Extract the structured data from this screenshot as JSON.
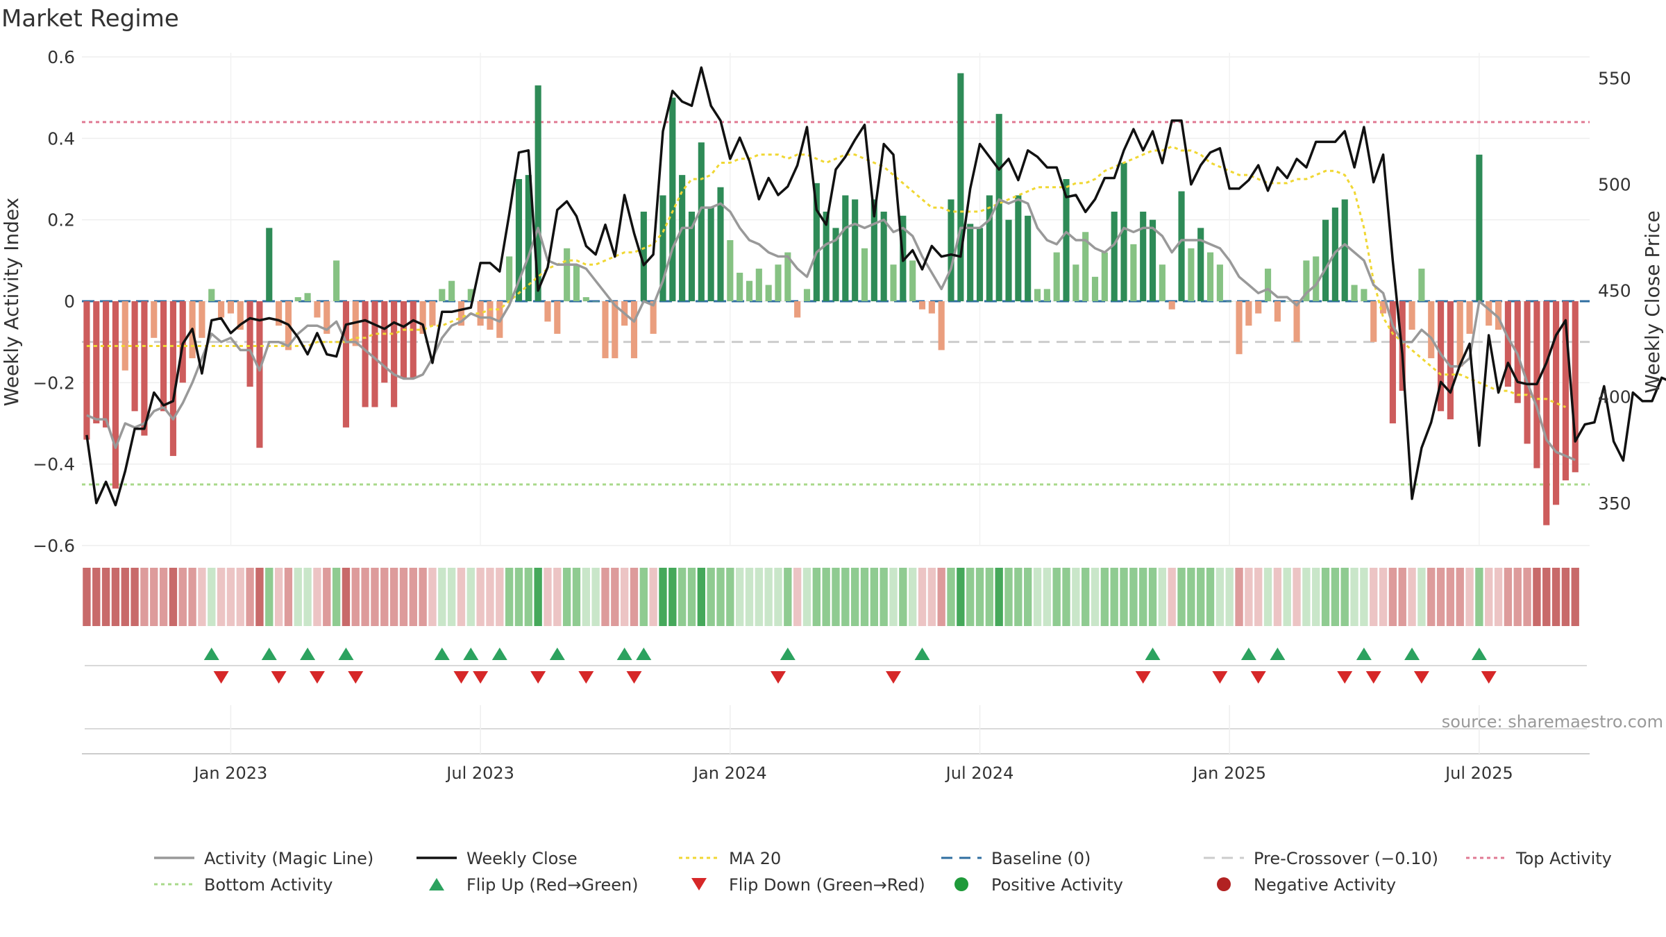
{
  "title": "Market Regime",
  "chart_data": {
    "type": "bar",
    "title": "Market Regime",
    "ylabel_left": "Weekly Activity Index",
    "ylabel_right": "Weekly Close Price",
    "ylim_left": [
      -0.6,
      0.6
    ],
    "ylim_right": [
      330,
      560
    ],
    "yticks_left": [
      -0.6,
      -0.4,
      -0.2,
      0,
      0.2,
      0.4,
      0.6
    ],
    "yticks_left_labels": [
      "−0.6",
      "−0.4",
      "−0.2",
      "0",
      "0.2",
      "0.4",
      "0.6"
    ],
    "yticks_right": [
      350,
      400,
      450,
      500,
      550
    ],
    "yticks_right_labels": [
      "350",
      "400",
      "450",
      "500",
      "550"
    ],
    "xticks": [
      {
        "label": "Jan 2023",
        "week": 15
      },
      {
        "label": "Jul 2023",
        "week": 41
      },
      {
        "label": "Jan 2024",
        "week": 67
      },
      {
        "label": "Jul 2024",
        "week": 93
      },
      {
        "label": "Jan 2025",
        "week": 119
      },
      {
        "label": "Jul 2025",
        "week": 145
      }
    ],
    "week_count": 157,
    "top_activity": 0.44,
    "bottom_activity": -0.45,
    "pre_crossover": -0.1,
    "baseline": 0,
    "series": [
      {
        "name": "Weekly Activity Index",
        "values": [
          -0.34,
          -0.3,
          -0.31,
          -0.46,
          -0.17,
          -0.27,
          -0.33,
          -0.09,
          -0.27,
          -0.38,
          -0.2,
          -0.14,
          -0.09,
          0.03,
          -0.04,
          -0.03,
          -0.07,
          -0.21,
          -0.36,
          0.18,
          -0.06,
          -0.12,
          0.01,
          0.02,
          -0.04,
          -0.08,
          0.1,
          -0.31,
          -0.11,
          -0.26,
          -0.26,
          -0.2,
          -0.26,
          -0.19,
          -0.19,
          -0.08,
          -0.06,
          0.03,
          0.05,
          -0.06,
          0.03,
          -0.06,
          -0.07,
          -0.09,
          0.11,
          0.3,
          0.31,
          0.53,
          -0.05,
          -0.08,
          0.13,
          0.09,
          0.01,
          0.0,
          -0.14,
          -0.14,
          -0.06,
          -0.14,
          0.22,
          -0.08,
          0.26,
          0.5,
          0.31,
          0.22,
          0.39,
          0.23,
          0.28,
          0.15,
          0.07,
          0.05,
          0.08,
          0.04,
          0.09,
          0.12,
          -0.04,
          0.03,
          0.29,
          0.22,
          0.18,
          0.26,
          0.25,
          0.13,
          0.25,
          0.22,
          0.09,
          0.21,
          0.1,
          -0.02,
          -0.03,
          -0.12,
          0.25,
          0.56,
          0.19,
          0.18,
          0.26,
          0.46,
          0.2,
          0.26,
          0.21,
          0.03,
          0.03,
          0.12,
          0.3,
          0.09,
          0.17,
          0.06,
          0.12,
          0.22,
          0.34,
          0.14,
          0.22,
          0.2,
          0.09,
          -0.02,
          0.27,
          0.13,
          0.18,
          0.12,
          0.09,
          0.0,
          -0.13,
          -0.06,
          -0.03,
          0.08,
          -0.05,
          0.0,
          -0.1,
          0.1,
          0.11,
          0.2,
          0.23,
          0.25,
          0.04,
          0.03,
          -0.1,
          -0.03,
          -0.3,
          -0.22,
          -0.07,
          0.08,
          -0.14,
          -0.27,
          -0.29,
          -0.16,
          -0.08,
          0.36,
          -0.06,
          -0.07,
          -0.21,
          -0.25,
          -0.35,
          -0.41,
          -0.55,
          -0.5,
          -0.44,
          -0.42
        ]
      },
      {
        "name": "Activity (Magic Line)",
        "values": [
          -0.28,
          -0.29,
          -0.29,
          -0.36,
          -0.3,
          -0.31,
          -0.3,
          -0.27,
          -0.26,
          -0.29,
          -0.25,
          -0.2,
          -0.14,
          -0.08,
          -0.1,
          -0.09,
          -0.12,
          -0.12,
          -0.17,
          -0.1,
          -0.1,
          -0.11,
          -0.08,
          -0.06,
          -0.06,
          -0.07,
          -0.05,
          -0.1,
          -0.1,
          -0.12,
          -0.14,
          -0.16,
          -0.18,
          -0.19,
          -0.19,
          -0.18,
          -0.14,
          -0.09,
          -0.06,
          -0.05,
          -0.03,
          -0.04,
          -0.04,
          -0.05,
          -0.01,
          0.05,
          0.11,
          0.18,
          0.1,
          0.09,
          0.09,
          0.09,
          0.08,
          0.05,
          0.02,
          -0.01,
          -0.03,
          -0.05,
          0.0,
          -0.01,
          0.05,
          0.13,
          0.18,
          0.18,
          0.23,
          0.23,
          0.24,
          0.22,
          0.18,
          0.15,
          0.14,
          0.12,
          0.11,
          0.11,
          0.08,
          0.06,
          0.12,
          0.14,
          0.15,
          0.18,
          0.19,
          0.18,
          0.19,
          0.2,
          0.17,
          0.18,
          0.16,
          0.11,
          0.07,
          0.03,
          0.08,
          0.18,
          0.18,
          0.18,
          0.2,
          0.25,
          0.24,
          0.25,
          0.24,
          0.18,
          0.15,
          0.14,
          0.17,
          0.15,
          0.15,
          0.13,
          0.12,
          0.14,
          0.18,
          0.17,
          0.18,
          0.18,
          0.16,
          0.12,
          0.15,
          0.15,
          0.15,
          0.14,
          0.13,
          0.1,
          0.06,
          0.04,
          0.02,
          0.03,
          0.01,
          0.01,
          -0.01,
          0.02,
          0.04,
          0.08,
          0.12,
          0.14,
          0.12,
          0.1,
          0.04,
          0.02,
          -0.06,
          -0.1,
          -0.1,
          -0.07,
          -0.09,
          -0.13,
          -0.16,
          -0.16,
          -0.14,
          0.0,
          -0.02,
          -0.04,
          -0.09,
          -0.13,
          -0.2,
          -0.26,
          -0.34,
          -0.37,
          -0.38,
          -0.39
        ]
      },
      {
        "name": "Weekly Close",
        "values": [
          382,
          350,
          360,
          349,
          365,
          385,
          385,
          402,
          396,
          398,
          425,
          432,
          411,
          436,
          437,
          430,
          434,
          437,
          436,
          437,
          436,
          434,
          428,
          420,
          430,
          420,
          419,
          434,
          435,
          436,
          434,
          432,
          435,
          433,
          436,
          434,
          416,
          440,
          440,
          441,
          442,
          463,
          463,
          459,
          486,
          515,
          516,
          450,
          461,
          488,
          492,
          485,
          471,
          467,
          481,
          466,
          495,
          477,
          462,
          467,
          525,
          544,
          539,
          537,
          555,
          537,
          530,
          512,
          522,
          511,
          493,
          503,
          495,
          499,
          509,
          527,
          488,
          481,
          507,
          513,
          521,
          528,
          485,
          519,
          514,
          464,
          469,
          460,
          471,
          466,
          467,
          466,
          498,
          519,
          513,
          507,
          512,
          502,
          516,
          513,
          508,
          508,
          494,
          495,
          487,
          493,
          503,
          503,
          516,
          526,
          516,
          525,
          510,
          530,
          530,
          500,
          509,
          515,
          517,
          498,
          498,
          502,
          509,
          497,
          508,
          503,
          512,
          508,
          520,
          520,
          520,
          525,
          508,
          527,
          501,
          514,
          464,
          420,
          352,
          376,
          388,
          407,
          402,
          415,
          425,
          377,
          429,
          402,
          416,
          407,
          406,
          406,
          416,
          429,
          436,
          379,
          387,
          388,
          405,
          379,
          370,
          402,
          398,
          398,
          409,
          407
        ]
      },
      {
        "name": "MA 20",
        "values": [
          -0.11,
          -0.11,
          -0.11,
          -0.11,
          -0.11,
          -0.11,
          -0.11,
          -0.11,
          -0.11,
          -0.11,
          -0.11,
          -0.11,
          -0.11,
          -0.11,
          -0.11,
          -0.11,
          -0.11,
          -0.11,
          -0.11,
          -0.11,
          -0.11,
          -0.11,
          -0.11,
          -0.11,
          -0.1,
          -0.1,
          -0.1,
          -0.1,
          -0.09,
          -0.09,
          -0.08,
          -0.08,
          -0.08,
          -0.07,
          -0.07,
          -0.07,
          -0.06,
          -0.06,
          -0.05,
          -0.04,
          -0.03,
          -0.03,
          -0.02,
          -0.02,
          0.0,
          0.02,
          0.04,
          0.06,
          0.08,
          0.09,
          0.1,
          0.1,
          0.09,
          0.09,
          0.1,
          0.11,
          0.12,
          0.12,
          0.13,
          0.14,
          0.17,
          0.22,
          0.27,
          0.3,
          0.3,
          0.31,
          0.34,
          0.34,
          0.35,
          0.35,
          0.36,
          0.36,
          0.36,
          0.35,
          0.36,
          0.36,
          0.35,
          0.34,
          0.35,
          0.36,
          0.36,
          0.35,
          0.34,
          0.33,
          0.31,
          0.29,
          0.27,
          0.25,
          0.23,
          0.23,
          0.22,
          0.22,
          0.22,
          0.22,
          0.23,
          0.24,
          0.25,
          0.26,
          0.27,
          0.28,
          0.28,
          0.28,
          0.28,
          0.29,
          0.29,
          0.3,
          0.32,
          0.33,
          0.34,
          0.35,
          0.36,
          0.37,
          0.37,
          0.38,
          0.37,
          0.37,
          0.36,
          0.34,
          0.33,
          0.32,
          0.31,
          0.31,
          0.3,
          0.29,
          0.29,
          0.29,
          0.3,
          0.3,
          0.31,
          0.32,
          0.32,
          0.31,
          0.27,
          0.18,
          0.05,
          -0.04,
          -0.08,
          -0.1,
          -0.12,
          -0.14,
          -0.16,
          -0.18,
          -0.18,
          -0.18,
          -0.19,
          -0.2,
          -0.21,
          -0.22,
          -0.22,
          -0.23,
          -0.23,
          -0.24,
          -0.24,
          -0.25,
          -0.26
        ]
      }
    ],
    "flip_up_weeks": [
      13,
      19,
      23,
      27,
      37,
      40,
      43,
      49,
      56,
      58,
      73,
      87,
      111,
      121,
      124,
      133,
      138,
      145
    ],
    "flip_down_weeks": [
      14,
      20,
      24,
      28,
      39,
      41,
      47,
      52,
      57,
      72,
      84,
      110,
      118,
      122,
      131,
      134,
      139,
      146
    ],
    "regime_strip": [
      -3,
      -3,
      -3,
      -3,
      -3,
      -3,
      -2,
      -2,
      -2,
      -3,
      -2,
      -2,
      -1,
      1,
      -1,
      -1,
      -1,
      -2,
      -3,
      2,
      -1,
      -2,
      1,
      1,
      -1,
      -2,
      2,
      -3,
      -2,
      -2,
      -2,
      -2,
      -2,
      -2,
      -2,
      -2,
      -1,
      1,
      1,
      -1,
      1,
      -1,
      -1,
      -1,
      2,
      2,
      2,
      3,
      -1,
      -1,
      2,
      2,
      1,
      1,
      -2,
      -2,
      -1,
      -2,
      2,
      -1,
      3,
      3,
      2,
      2,
      3,
      2,
      2,
      2,
      1,
      1,
      1,
      1,
      1,
      2,
      -1,
      1,
      2,
      2,
      2,
      2,
      2,
      2,
      2,
      2,
      1,
      2,
      1,
      -1,
      -1,
      -2,
      2,
      3,
      2,
      2,
      2,
      3,
      2,
      2,
      2,
      1,
      1,
      2,
      2,
      1,
      2,
      1,
      2,
      2,
      2,
      2,
      2,
      2,
      1,
      -1,
      2,
      2,
      2,
      2,
      1,
      1,
      -2,
      -1,
      -1,
      1,
      -1,
      1,
      -1,
      1,
      1,
      2,
      2,
      2,
      1,
      1,
      -1,
      -1,
      -2,
      -2,
      -1,
      1,
      -2,
      -2,
      -2,
      -2,
      -1,
      2,
      -1,
      -1,
      -2,
      -2,
      -2,
      -3,
      -3,
      -3,
      -3,
      -3
    ],
    "legend": [
      {
        "label": "Activity (Magic Line)",
        "swatch": "line",
        "color": "#999999"
      },
      {
        "label": "Weekly Close",
        "swatch": "line",
        "color": "#111111"
      },
      {
        "label": "MA 20",
        "swatch": "dotted",
        "color": "#f0d733"
      },
      {
        "label": "Baseline (0)",
        "swatch": "dashed",
        "color": "#2f6ea0"
      },
      {
        "label": "Pre-Crossover (−0.10)",
        "swatch": "dashed",
        "color": "#cccccc"
      },
      {
        "label": "Top Activity",
        "swatch": "dotted",
        "color": "#e07a93"
      },
      {
        "label": "Bottom Activity",
        "swatch": "dotted",
        "color": "#a8d98a"
      },
      {
        "label": "Flip Up (Red→Green)",
        "swatch": "tri-up",
        "color": "#2ca25f"
      },
      {
        "label": "Flip Down (Green→Red)",
        "swatch": "tri-down",
        "color": "#d62728"
      },
      {
        "label": "Positive Activity",
        "swatch": "dot",
        "color": "#1f9a3a"
      },
      {
        "label": "Negative Activity",
        "swatch": "dot",
        "color": "#b22222"
      }
    ],
    "legend_placement": "bottom"
  },
  "source": "source: sharemaestro.com",
  "colors": {
    "pos_strong": "#2e8b57",
    "pos_light": "#86c283",
    "neg_strong": "#cd5c5c",
    "neg_light": "#ea9e7e",
    "close_line": "#111111",
    "magic_line": "#999999",
    "ma_line": "#f0d733",
    "top_line": "#e07a93",
    "bottom_line": "#a8d98a",
    "baseline": "#2f6ea0",
    "pre_cross": "#cccccc",
    "flip_up": "#2ca25f",
    "flip_down": "#d62728",
    "strip_pos": [
      "#c9e6c9",
      "#8fcb91",
      "#45a85a"
    ],
    "strip_neg": [
      "#ecc4c4",
      "#dd9b9b",
      "#c86a6a"
    ]
  }
}
